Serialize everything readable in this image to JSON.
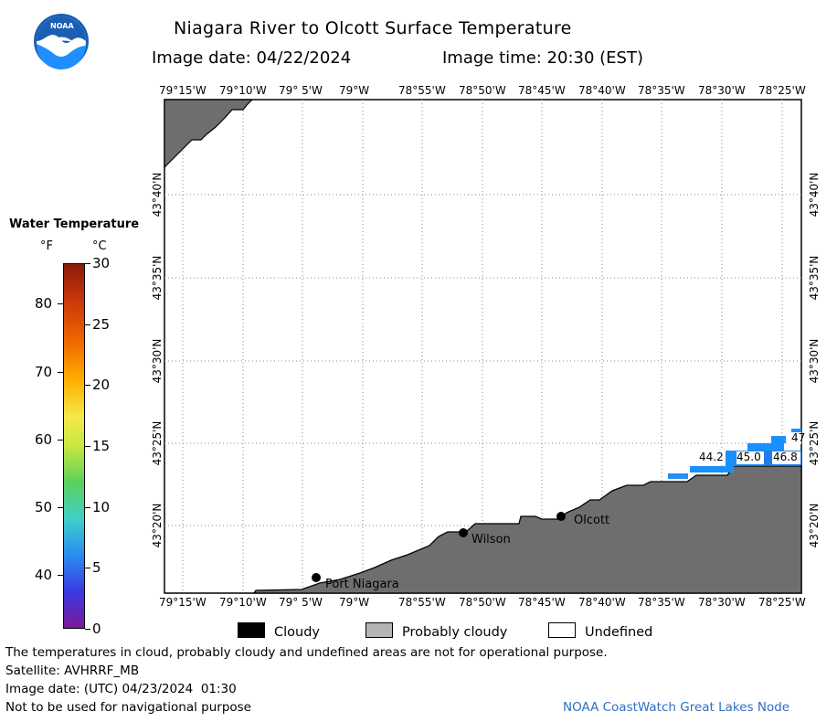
{
  "header": {
    "title": "Niagara River to Olcott Surface Temperature",
    "image_date_label": "Image date: 04/22/2024",
    "image_time_label": "Image time: 20:30 (EST)",
    "logo_text": "NOAA"
  },
  "map": {
    "lon_ticks": [
      "79°15'W",
      "79°10'W",
      "79° 5'W",
      "79°W",
      "78°55'W",
      "78°50'W",
      "78°45'W",
      "78°40'W",
      "78°35'W",
      "78°30'W",
      "78°25'W"
    ],
    "lat_ticks": [
      "43°40'N",
      "43°35'N",
      "43°30'N",
      "43°25'N",
      "43°20'N"
    ],
    "places": [
      {
        "name": "Port Niagara"
      },
      {
        "name": "Wilson"
      },
      {
        "name": "Olcott"
      }
    ],
    "temp_labels": [
      "44.2",
      "45.0",
      "46.8",
      "47"
    ],
    "colors": {
      "land": "#6e6e6e",
      "water_cold": "#1e7ee8",
      "water_mid": "#1a90ff",
      "grid": "#888888"
    }
  },
  "colorbar": {
    "title": "Water Temperature",
    "unit_f": "°F",
    "unit_c": "°C",
    "f_labels": [
      "80",
      "70",
      "60",
      "50",
      "40"
    ],
    "c_labels": [
      "30",
      "25",
      "20",
      "15",
      "10",
      "5",
      "0"
    ],
    "f_range": [
      32,
      86
    ],
    "c_range": [
      0,
      30
    ]
  },
  "legend": {
    "cloudy": "Cloudy",
    "probably_cloudy": "Probably cloudy",
    "undefined": "Undefined",
    "colors": {
      "cloudy": "#000000",
      "probably_cloudy": "#b4b4b4",
      "undefined": "#ffffff"
    }
  },
  "footer": {
    "disclaimer": "The temperatures in cloud, probably cloudy and undefined areas are not for operational purpose.",
    "satellite": "Satellite: AVHRRF_MB",
    "utc_date": "Image date: (UTC) 04/23/2024  01:30",
    "nav_warning": "Not to be used for navigational purpose",
    "credit": "NOAA CoastWatch Great Lakes Node"
  }
}
